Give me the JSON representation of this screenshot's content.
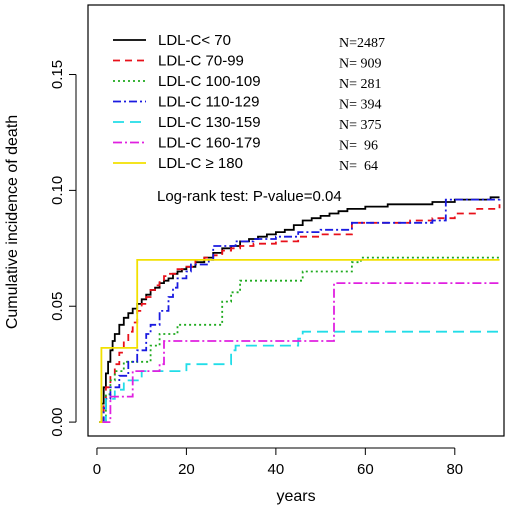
{
  "chart_data": {
    "type": "line",
    "step": true,
    "xlabel": "years",
    "ylabel": "Cumulative incidence of death",
    "xlim": [
      -2,
      91
    ],
    "ylim": [
      -0.006,
      0.18
    ],
    "xticks": [
      0,
      20,
      40,
      60,
      80
    ],
    "yticks": [
      0.0,
      0.05,
      0.1,
      0.15
    ],
    "ytick_labels": [
      "0.00",
      "0.05",
      "0.10",
      "0.15"
    ],
    "legend_placement": "top-left",
    "annotation": "Log-rank test: P-value=0.04",
    "series": [
      {
        "name": "LDL-C< 70",
        "n_label": "N=2487",
        "color": "#000000",
        "dash": "",
        "points": [
          [
            0.5,
            0
          ],
          [
            1,
            0.008
          ],
          [
            1.5,
            0.015
          ],
          [
            2,
            0.021
          ],
          [
            2.5,
            0.026
          ],
          [
            3,
            0.031
          ],
          [
            3.5,
            0.035
          ],
          [
            4,
            0.038
          ],
          [
            5,
            0.042
          ],
          [
            6,
            0.045
          ],
          [
            7,
            0.047
          ],
          [
            8,
            0.049
          ],
          [
            9,
            0.051
          ],
          [
            10,
            0.053
          ],
          [
            11,
            0.055
          ],
          [
            12,
            0.057
          ],
          [
            13,
            0.058
          ],
          [
            14,
            0.06
          ],
          [
            15,
            0.061
          ],
          [
            16,
            0.062
          ],
          [
            17,
            0.064
          ],
          [
            18,
            0.065
          ],
          [
            19,
            0.066
          ],
          [
            20,
            0.067
          ],
          [
            22,
            0.069
          ],
          [
            24,
            0.071
          ],
          [
            26,
            0.073
          ],
          [
            28,
            0.075
          ],
          [
            30,
            0.076
          ],
          [
            32,
            0.078
          ],
          [
            34,
            0.079
          ],
          [
            36,
            0.08
          ],
          [
            38,
            0.081
          ],
          [
            40,
            0.082
          ],
          [
            42,
            0.083
          ],
          [
            44,
            0.085
          ],
          [
            46,
            0.087
          ],
          [
            48,
            0.088
          ],
          [
            50,
            0.089
          ],
          [
            52,
            0.09
          ],
          [
            54,
            0.091
          ],
          [
            56,
            0.092
          ],
          [
            60,
            0.093
          ],
          [
            65,
            0.094
          ],
          [
            70,
            0.094
          ],
          [
            75,
            0.095
          ],
          [
            80,
            0.096
          ],
          [
            85,
            0.096
          ],
          [
            88,
            0.097
          ],
          [
            90,
            0.097
          ]
        ]
      },
      {
        "name": "LDL-C 70-99",
        "n_label": "N= 909",
        "color": "#e8101a",
        "dash": "7,5",
        "points": [
          [
            1,
            0
          ],
          [
            1.5,
            0.008
          ],
          [
            2,
            0.015
          ],
          [
            3,
            0.02
          ],
          [
            4,
            0.025
          ],
          [
            5,
            0.03
          ],
          [
            6,
            0.035
          ],
          [
            7,
            0.039
          ],
          [
            8,
            0.043
          ],
          [
            9,
            0.048
          ],
          [
            10,
            0.051
          ],
          [
            11,
            0.054
          ],
          [
            12,
            0.057
          ],
          [
            13,
            0.059
          ],
          [
            14,
            0.061
          ],
          [
            15,
            0.063
          ],
          [
            16,
            0.064
          ],
          [
            18,
            0.066
          ],
          [
            20,
            0.067
          ],
          [
            22,
            0.07
          ],
          [
            24,
            0.071
          ],
          [
            26,
            0.072
          ],
          [
            28,
            0.074
          ],
          [
            30,
            0.075
          ],
          [
            32,
            0.076
          ],
          [
            35,
            0.077
          ],
          [
            40,
            0.078
          ],
          [
            45,
            0.08
          ],
          [
            50,
            0.081
          ],
          [
            56,
            0.081
          ],
          [
            57,
            0.086
          ],
          [
            65,
            0.086
          ],
          [
            70,
            0.087
          ],
          [
            75,
            0.088
          ],
          [
            80,
            0.09
          ],
          [
            85,
            0.092
          ],
          [
            90,
            0.094
          ]
        ]
      },
      {
        "name": "LDL-C 100-109",
        "n_label": "N= 281",
        "color": "#1faa1f",
        "dash": "2,3",
        "points": [
          [
            1,
            0
          ],
          [
            2,
            0.012
          ],
          [
            3,
            0.018
          ],
          [
            4,
            0.022
          ],
          [
            6,
            0.026
          ],
          [
            12,
            0.033
          ],
          [
            14,
            0.038
          ],
          [
            18,
            0.042
          ],
          [
            27,
            0.042
          ],
          [
            28,
            0.052
          ],
          [
            30,
            0.056
          ],
          [
            32,
            0.061
          ],
          [
            33,
            0.061
          ],
          [
            45,
            0.061
          ],
          [
            46,
            0.065
          ],
          [
            56,
            0.065
          ],
          [
            57,
            0.069
          ],
          [
            59,
            0.071
          ],
          [
            90,
            0.071
          ]
        ]
      },
      {
        "name": "LDL-C 110-129",
        "n_label": "N= 394",
        "color": "#1a1ae0",
        "dash": "8,3,2,3",
        "points": [
          [
            1,
            0
          ],
          [
            1.5,
            0.006
          ],
          [
            2,
            0.01
          ],
          [
            3,
            0.015
          ],
          [
            5,
            0.02
          ],
          [
            7,
            0.026
          ],
          [
            9,
            0.031
          ],
          [
            11,
            0.038
          ],
          [
            12,
            0.042
          ],
          [
            14,
            0.048
          ],
          [
            16,
            0.054
          ],
          [
            17,
            0.058
          ],
          [
            18,
            0.062
          ],
          [
            20,
            0.065
          ],
          [
            21,
            0.068
          ],
          [
            22,
            0.068
          ],
          [
            25,
            0.07
          ],
          [
            26,
            0.076
          ],
          [
            30,
            0.076
          ],
          [
            31,
            0.078
          ],
          [
            35,
            0.079
          ],
          [
            40,
            0.08
          ],
          [
            45,
            0.082
          ],
          [
            50,
            0.083
          ],
          [
            56,
            0.083
          ],
          [
            57,
            0.086
          ],
          [
            75,
            0.087
          ],
          [
            78,
            0.096
          ],
          [
            90,
            0.097
          ]
        ]
      },
      {
        "name": "LDL-C 130-159",
        "n_label": "N= 375",
        "color": "#22dde8",
        "dash": "11,6",
        "points": [
          [
            1,
            0
          ],
          [
            2,
            0.01
          ],
          [
            4,
            0.014
          ],
          [
            6,
            0.018
          ],
          [
            10,
            0.022
          ],
          [
            20,
            0.025
          ],
          [
            30,
            0.031
          ],
          [
            31,
            0.033
          ],
          [
            45,
            0.036
          ],
          [
            46,
            0.039
          ],
          [
            90,
            0.039
          ]
        ]
      },
      {
        "name": "LDL-C 160-179",
        "n_label": "N=  96",
        "color": "#e020e0",
        "dash": "9,3,2,3",
        "points": [
          [
            1,
            0
          ],
          [
            3,
            0.011
          ],
          [
            8,
            0.022
          ],
          [
            14,
            0.025
          ],
          [
            15,
            0.035
          ],
          [
            52,
            0.035
          ],
          [
            53,
            0.06
          ],
          [
            90,
            0.06
          ]
        ]
      },
      {
        "name": "LDL-C ≥ 180",
        "n_label": "N=  64",
        "color": "#f2e000",
        "dash": "",
        "points": [
          [
            0.5,
            0
          ],
          [
            1,
            0.032
          ],
          [
            8,
            0.032
          ],
          [
            9,
            0.07
          ],
          [
            90,
            0.07
          ]
        ]
      }
    ]
  }
}
